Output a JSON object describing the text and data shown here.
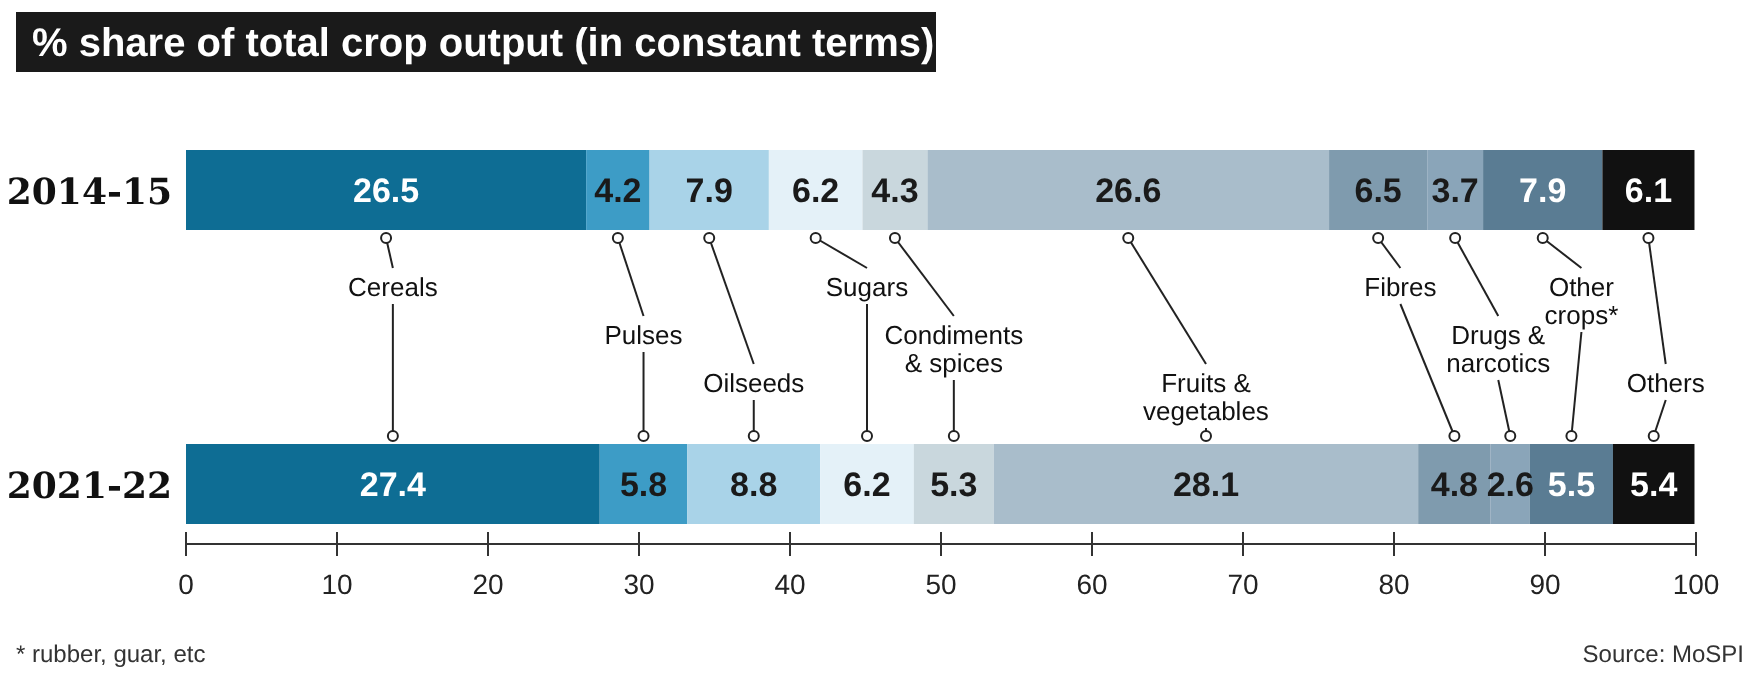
{
  "chart_data": {
    "type": "bar",
    "orientation": "horizontal",
    "stacked": true,
    "title": "% share of total crop output (in constant terms)",
    "categories": [
      "2014-15",
      "2021-22"
    ],
    "series": [
      {
        "name": "Cereals",
        "color": "#0e6d94",
        "values": [
          26.5,
          27.4
        ]
      },
      {
        "name": "Pulses",
        "color": "#3d9cc6",
        "values": [
          4.2,
          5.8
        ]
      },
      {
        "name": "Oilseeds",
        "color": "#a9d3e8",
        "values": [
          7.9,
          8.8
        ]
      },
      {
        "name": "Sugars",
        "color": "#e4f1f8",
        "values": [
          6.2,
          6.2
        ]
      },
      {
        "name": "Condiments & spices",
        "color": "#c9d7dd",
        "values": [
          4.3,
          5.3
        ]
      },
      {
        "name": "Fruits & vegetables",
        "color": "#a9bdcb",
        "values": [
          26.6,
          28.1
        ]
      },
      {
        "name": "Fibres",
        "color": "#7f9bae",
        "values": [
          6.5,
          4.8
        ]
      },
      {
        "name": "Drugs & narcotics",
        "color": "#8aa5b9",
        "values": [
          3.7,
          2.6
        ]
      },
      {
        "name": "Other crops*",
        "color": "#5a7c93",
        "values": [
          7.9,
          5.5
        ]
      },
      {
        "name": "Others",
        "color": "#111111",
        "values": [
          6.1,
          5.4
        ]
      }
    ],
    "xlim": [
      0,
      100
    ],
    "xticks": [
      0,
      10,
      20,
      30,
      40,
      50,
      60,
      70,
      80,
      90,
      100
    ],
    "data_labels": true,
    "grid": false,
    "annotations": [
      "* rubber, guar, etc",
      "Source: MoSPI"
    ]
  }
}
